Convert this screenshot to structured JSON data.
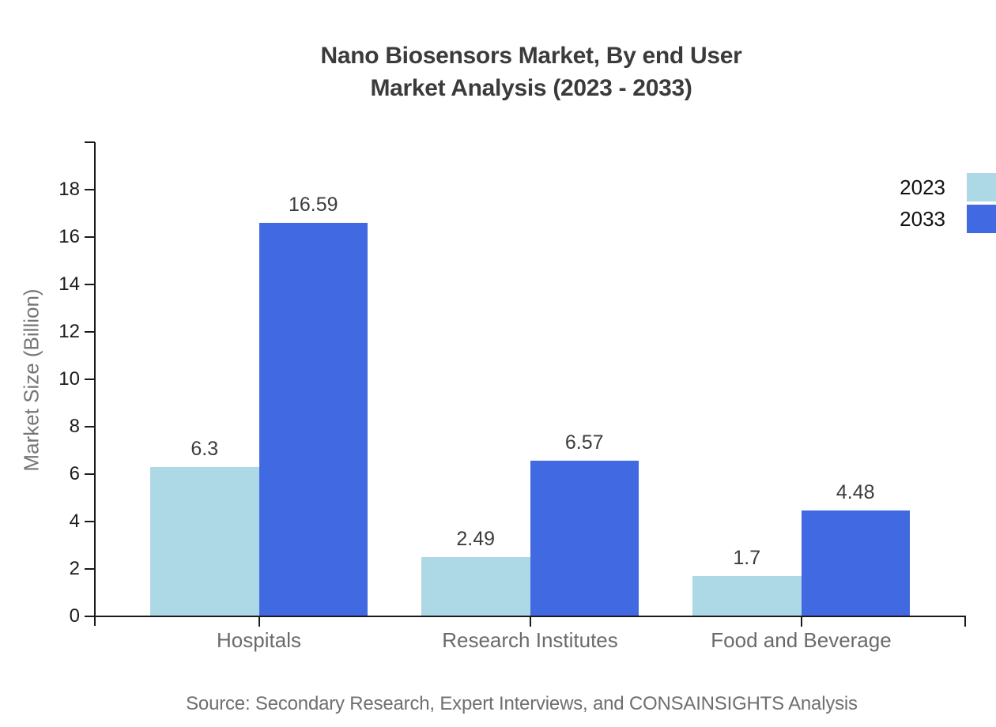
{
  "title": {
    "line1": "Nano Biosensors Market, By end User",
    "line2": "Market Analysis (2023 - 2033)"
  },
  "y_axis_label": "Market Size (Billion)",
  "source_note": "Source: Secondary Research, Expert Interviews, and CONSAINSIGHTS Analysis",
  "legend": {
    "items": [
      {
        "label": "2023",
        "color": "#ADD8E6"
      },
      {
        "label": "2033",
        "color": "#4169E1"
      }
    ]
  },
  "colors": {
    "series_2023": "#ADD8E6",
    "series_2033": "#4169E1",
    "axis": "#1b1b1b",
    "title_text": "#3b3b3b",
    "muted_text": "#6a6a6a"
  },
  "chart_data": {
    "type": "bar",
    "title": "Nano Biosensors Market, By end User Market Analysis (2023 - 2033)",
    "categories": [
      "Hospitals",
      "Research Institutes",
      "Food and Beverage"
    ],
    "series": [
      {
        "name": "2023",
        "color": "#ADD8E6",
        "values": [
          6.3,
          2.49,
          1.7
        ]
      },
      {
        "name": "2033",
        "color": "#4169E1",
        "values": [
          16.59,
          6.57,
          4.48
        ]
      }
    ],
    "value_labels": [
      [
        "6.3",
        "2.49",
        "1.7"
      ],
      [
        "16.59",
        "6.57",
        "4.48"
      ]
    ],
    "xlabel": "",
    "ylabel": "Market Size (Billion)",
    "ylim": [
      0,
      20
    ],
    "yticks": [
      0,
      2,
      4,
      6,
      8,
      10,
      12,
      14,
      16,
      18
    ],
    "grid": false,
    "legend_position": "top-right",
    "bar_value_labels": true
  }
}
